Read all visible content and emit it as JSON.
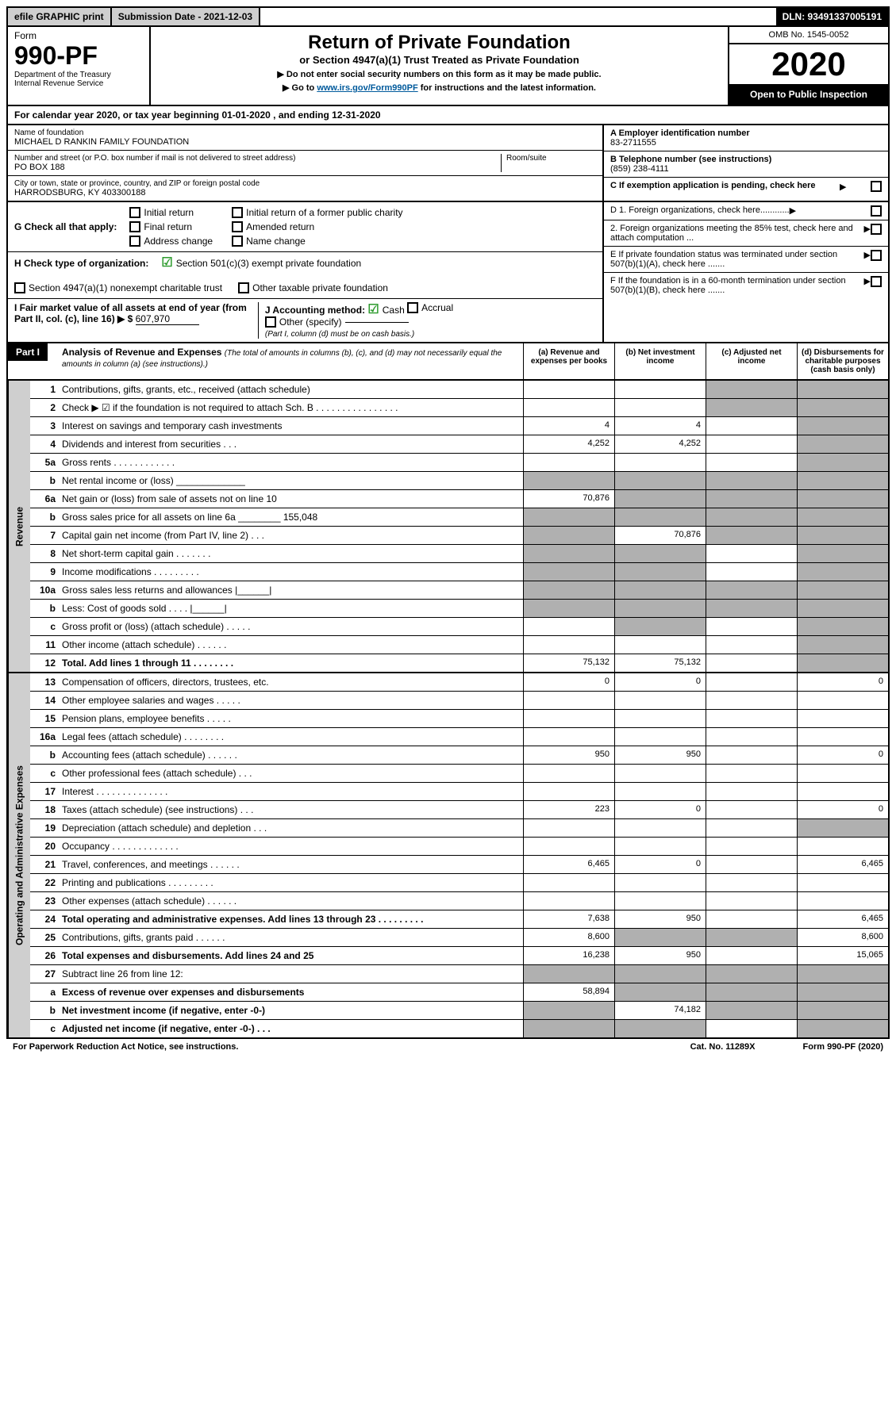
{
  "topbar": {
    "efile": "efile GRAPHIC print",
    "submission_label": "Submission Date - 2021-12-03",
    "dln": "DLN: 93491337005191"
  },
  "header": {
    "form_label": "Form",
    "form_no": "990-PF",
    "dept": "Department of the Treasury",
    "irs": "Internal Revenue Service",
    "title": "Return of Private Foundation",
    "subtitle": "or Section 4947(a)(1) Trust Treated as Private Foundation",
    "note1": "▶ Do not enter social security numbers on this form as it may be made public.",
    "note2_pre": "▶ Go to ",
    "note2_link": "www.irs.gov/Form990PF",
    "note2_post": " for instructions and the latest information.",
    "omb": "OMB No. 1545-0052",
    "year": "2020",
    "open": "Open to Public Inspection"
  },
  "cal_year": "For calendar year 2020, or tax year beginning 01-01-2020                     , and ending 12-31-2020",
  "foundation": {
    "name_label": "Name of foundation",
    "name": "MICHAEL D RANKIN FAMILY FOUNDATION",
    "addr_label": "Number and street (or P.O. box number if mail is not delivered to street address)",
    "addr": "PO BOX 188",
    "room_label": "Room/suite",
    "room": "",
    "city_label": "City or town, state or province, country, and ZIP or foreign postal code",
    "city": "HARRODSBURG, KY  403300188",
    "ein_label": "A Employer identification number",
    "ein": "83-2711555",
    "phone_label": "B Telephone number (see instructions)",
    "phone": "(859) 238-4111",
    "c_label": "C If exemption application is pending, check here"
  },
  "sectionG": {
    "g_label": "G Check all that apply:",
    "opts": [
      "Initial return",
      "Final return",
      "Address change",
      "Initial return of a former public charity",
      "Amended return",
      "Name change"
    ],
    "h_label": "H Check type of organization:",
    "h_opts": [
      "Section 501(c)(3) exempt private foundation",
      "Section 4947(a)(1) nonexempt charitable trust",
      "Other taxable private foundation"
    ],
    "i_label": "I Fair market value of all assets at end of year (from Part II, col. (c), line 16) ▶ $",
    "i_value": "607,970",
    "j_label": "J Accounting method:",
    "j_opts": [
      "Cash",
      "Accrual",
      "Other (specify)"
    ],
    "j_note": "(Part I, column (d) must be on cash basis.)"
  },
  "rightD": {
    "d1": "D 1. Foreign organizations, check here............",
    "d2": "    2. Foreign organizations meeting the 85% test, check here and attach computation ...",
    "e": "E  If private foundation status was terminated under section 507(b)(1)(A), check here .......",
    "f": "F  If the foundation is in a 60-month termination under section 507(b)(1)(B), check here .......",
    "arrow": "▶"
  },
  "part1": {
    "hdr": "Part I",
    "title": "Analysis of Revenue and Expenses",
    "title_note": "(The total of amounts in columns (b), (c), and (d) may not necessarily equal the amounts in column (a) (see instructions).)",
    "cols": [
      "(a) Revenue and expenses per books",
      "(b) Net investment income",
      "(c) Adjusted net income",
      "(d) Disbursements for charitable purposes (cash basis only)"
    ]
  },
  "revenue_label": "Revenue",
  "opex_label": "Operating and Administrative Expenses",
  "lines": [
    {
      "no": "1",
      "desc": "Contributions, gifts, grants, etc., received (attach schedule)",
      "a": "",
      "b": "",
      "c": "grey",
      "d": "grey"
    },
    {
      "no": "2",
      "desc": "Check ▶ ☑ if the foundation is not required to attach Sch. B  .  .  .  .  .  .  .  .  .  .  .  .  .  .  .  .",
      "a": "",
      "b": "",
      "c": "grey",
      "d": "grey"
    },
    {
      "no": "3",
      "desc": "Interest on savings and temporary cash investments",
      "a": "4",
      "b": "4",
      "c": "",
      "d": "grey"
    },
    {
      "no": "4",
      "desc": "Dividends and interest from securities  .  .  .",
      "a": "4,252",
      "b": "4,252",
      "c": "",
      "d": "grey"
    },
    {
      "no": "5a",
      "desc": "Gross rents  .  .  .  .  .  .  .  .  .  .  .  .",
      "a": "",
      "b": "",
      "c": "",
      "d": "grey"
    },
    {
      "no": "b",
      "desc": "Net rental income or (loss)  _____________",
      "a": "grey",
      "b": "grey",
      "c": "grey",
      "d": "grey"
    },
    {
      "no": "6a",
      "desc": "Net gain or (loss) from sale of assets not on line 10",
      "a": "70,876",
      "b": "grey",
      "c": "grey",
      "d": "grey"
    },
    {
      "no": "b",
      "desc": "Gross sales price for all assets on line 6a ________ 155,048",
      "a": "grey",
      "b": "grey",
      "c": "grey",
      "d": "grey"
    },
    {
      "no": "7",
      "desc": "Capital gain net income (from Part IV, line 2)  .  .  .",
      "a": "grey",
      "b": "70,876",
      "c": "grey",
      "d": "grey"
    },
    {
      "no": "8",
      "desc": "Net short-term capital gain  .  .  .  .  .  .  .",
      "a": "grey",
      "b": "grey",
      "c": "",
      "d": "grey"
    },
    {
      "no": "9",
      "desc": "Income modifications  .  .  .  .  .  .  .  .  .",
      "a": "grey",
      "b": "grey",
      "c": "",
      "d": "grey"
    },
    {
      "no": "10a",
      "desc": "Gross sales less returns and allowances  |______|",
      "a": "grey",
      "b": "grey",
      "c": "grey",
      "d": "grey"
    },
    {
      "no": "b",
      "desc": "Less: Cost of goods sold  .  .  .  .  |______|",
      "a": "grey",
      "b": "grey",
      "c": "grey",
      "d": "grey"
    },
    {
      "no": "c",
      "desc": "Gross profit or (loss) (attach schedule)  .  .  .  .  .",
      "a": "",
      "b": "grey",
      "c": "",
      "d": "grey"
    },
    {
      "no": "11",
      "desc": "Other income (attach schedule)  .  .  .  .  .  .",
      "a": "",
      "b": "",
      "c": "",
      "d": "grey"
    },
    {
      "no": "12",
      "desc": "Total. Add lines 1 through 11  .  .  .  .  .  .  .  .",
      "bold": true,
      "a": "75,132",
      "b": "75,132",
      "c": "",
      "d": "grey"
    }
  ],
  "opex": [
    {
      "no": "13",
      "desc": "Compensation of officers, directors, trustees, etc.",
      "a": "0",
      "b": "0",
      "c": "",
      "d": "0"
    },
    {
      "no": "14",
      "desc": "Other employee salaries and wages  .  .  .  .  .",
      "a": "",
      "b": "",
      "c": "",
      "d": ""
    },
    {
      "no": "15",
      "desc": "Pension plans, employee benefits  .  .  .  .  .",
      "a": "",
      "b": "",
      "c": "",
      "d": ""
    },
    {
      "no": "16a",
      "desc": "Legal fees (attach schedule)  .  .  .  .  .  .  .  .",
      "a": "",
      "b": "",
      "c": "",
      "d": ""
    },
    {
      "no": "b",
      "desc": "Accounting fees (attach schedule)  .  .  .  .  .  .",
      "a": "950",
      "b": "950",
      "c": "",
      "d": "0"
    },
    {
      "no": "c",
      "desc": "Other professional fees (attach schedule)  .  .  .",
      "a": "",
      "b": "",
      "c": "",
      "d": ""
    },
    {
      "no": "17",
      "desc": "Interest  .  .  .  .  .  .  .  .  .  .  .  .  .  .",
      "a": "",
      "b": "",
      "c": "",
      "d": ""
    },
    {
      "no": "18",
      "desc": "Taxes (attach schedule) (see instructions)  .  .  .",
      "a": "223",
      "b": "0",
      "c": "",
      "d": "0"
    },
    {
      "no": "19",
      "desc": "Depreciation (attach schedule) and depletion  .  .  .",
      "a": "",
      "b": "",
      "c": "",
      "d": "grey"
    },
    {
      "no": "20",
      "desc": "Occupancy  .  .  .  .  .  .  .  .  .  .  .  .  .",
      "a": "",
      "b": "",
      "c": "",
      "d": ""
    },
    {
      "no": "21",
      "desc": "Travel, conferences, and meetings  .  .  .  .  .  .",
      "a": "6,465",
      "b": "0",
      "c": "",
      "d": "6,465"
    },
    {
      "no": "22",
      "desc": "Printing and publications  .  .  .  .  .  .  .  .  .",
      "a": "",
      "b": "",
      "c": "",
      "d": ""
    },
    {
      "no": "23",
      "desc": "Other expenses (attach schedule)  .  .  .  .  .  .",
      "a": "",
      "b": "",
      "c": "",
      "d": ""
    },
    {
      "no": "24",
      "desc": "Total operating and administrative expenses. Add lines 13 through 23  .  .  .  .  .  .  .  .  .",
      "bold": true,
      "a": "7,638",
      "b": "950",
      "c": "",
      "d": "6,465"
    },
    {
      "no": "25",
      "desc": "Contributions, gifts, grants paid  .  .  .  .  .  .",
      "a": "8,600",
      "b": "grey",
      "c": "grey",
      "d": "8,600"
    },
    {
      "no": "26",
      "desc": "Total expenses and disbursements. Add lines 24 and 25",
      "bold": true,
      "a": "16,238",
      "b": "950",
      "c": "",
      "d": "15,065"
    },
    {
      "no": "27",
      "desc": "Subtract line 26 from line 12:",
      "a": "grey",
      "b": "grey",
      "c": "grey",
      "d": "grey"
    },
    {
      "no": "a",
      "desc": "Excess of revenue over expenses and disbursements",
      "bold": true,
      "a": "58,894",
      "b": "grey",
      "c": "grey",
      "d": "grey"
    },
    {
      "no": "b",
      "desc": "Net investment income (if negative, enter -0-)",
      "bold": true,
      "a": "grey",
      "b": "74,182",
      "c": "grey",
      "d": "grey"
    },
    {
      "no": "c",
      "desc": "Adjusted net income (if negative, enter -0-)  .  .  .",
      "bold": true,
      "a": "grey",
      "b": "grey",
      "c": "",
      "d": "grey"
    }
  ],
  "footer": {
    "left": "For Paperwork Reduction Act Notice, see instructions.",
    "mid": "Cat. No. 11289X",
    "right": "Form 990-PF (2020)"
  }
}
